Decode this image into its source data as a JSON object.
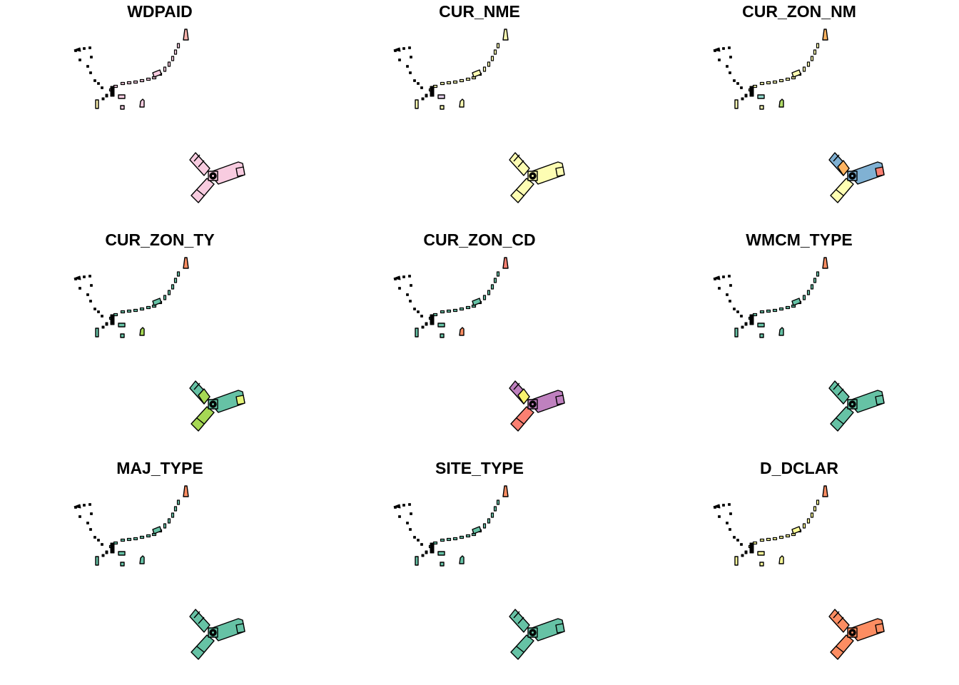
{
  "figure": {
    "panels": [
      {
        "title": "WDPAID",
        "colors": {
          "y": "#F8CCE0",
          "dots": "#F8CCE0",
          "tip": "#FBB4AE",
          "f1": "#FDF2AF",
          "f2": "#F8CCE0",
          "f3": "#F8CCE0",
          "f4": "#F8CCE0"
        }
      },
      {
        "title": "CUR_NME",
        "colors": {
          "y": "#FDFDB3",
          "dots": "#FDFDB3",
          "tip": "#FDFDB3",
          "f1": "#FDFDB3",
          "f2": "#DECBE4",
          "f3": "#FDFDB3",
          "f4": "#FDFDB3"
        }
      },
      {
        "title": "CUR_ZON_NM",
        "colors": {
          "y": "#80B1D3",
          "arm_ul": "#80B1D3",
          "arm_ul_inner": "#FDB462",
          "arm_ur_tip": "#FB8072",
          "arm_low": "#FFFFB3",
          "dots": "#FFFFB3",
          "tip": "#FDB462",
          "f1": "#FFFFB3",
          "f2": "#8DD3C7",
          "f3": "#FFFFB3",
          "f4": "#B3DE69"
        }
      },
      {
        "title": "CUR_ZON_TY",
        "colors": {
          "y": "#66C2A5",
          "arm_ul_inner": "#A6D854",
          "arm_ur_tip": "#E5F57A",
          "arm_low": "#A6D854",
          "dots": "#66C2A5",
          "tip": "#FC8D62",
          "f1": "#66C2A5",
          "f2": "#66C2A5",
          "f3": "#66C2A5",
          "f4": "#A6D854"
        }
      },
      {
        "title": "CUR_ZON_CD",
        "colors": {
          "y": "#BF81BF",
          "arm_ul_inner": "#F7F26E",
          "arm_ur_tip": "#BF81BF",
          "arm_low": "#FA8072",
          "dots": "#66C2A5",
          "tip": "#FA8072",
          "f1": "#66C2A5",
          "f2": "#66C2A5",
          "f3": "#66C2A5",
          "f4": "#FC8D62"
        }
      },
      {
        "title": "WMCM_TYPE",
        "colors": {
          "y": "#66C2A5",
          "dots": "#66C2A5",
          "tip": "#FC8D62",
          "f1": "#66C2A5",
          "f2": "#66C2A5",
          "f3": "#66C2A5",
          "f4": "#66C2A5"
        }
      },
      {
        "title": "MAJ_TYPE",
        "colors": {
          "y": "#66C2A5",
          "dots": "#66C2A5",
          "tip": "#FC8D62",
          "f1": "#66C2A5",
          "f2": "#66C2A5",
          "f3": "#66C2A5",
          "f4": "#66C2A5"
        }
      },
      {
        "title": "SITE_TYPE",
        "colors": {
          "y": "#66C2A5",
          "dots": "#66C2A5",
          "tip": "#FC8D62",
          "f1": "#66C2A5",
          "f2": "#66C2A5",
          "f3": "#66C2A5",
          "f4": "#66C2A5"
        }
      },
      {
        "title": "D_DCLAR",
        "colors": {
          "y": "#FC8D62",
          "dots": "#FFFF99",
          "tip": "#FC8D62",
          "f1": "#FFFF99",
          "f2": "#FFFF99",
          "f3": "#FFFF99",
          "f4": "#FFFF99"
        }
      }
    ]
  }
}
